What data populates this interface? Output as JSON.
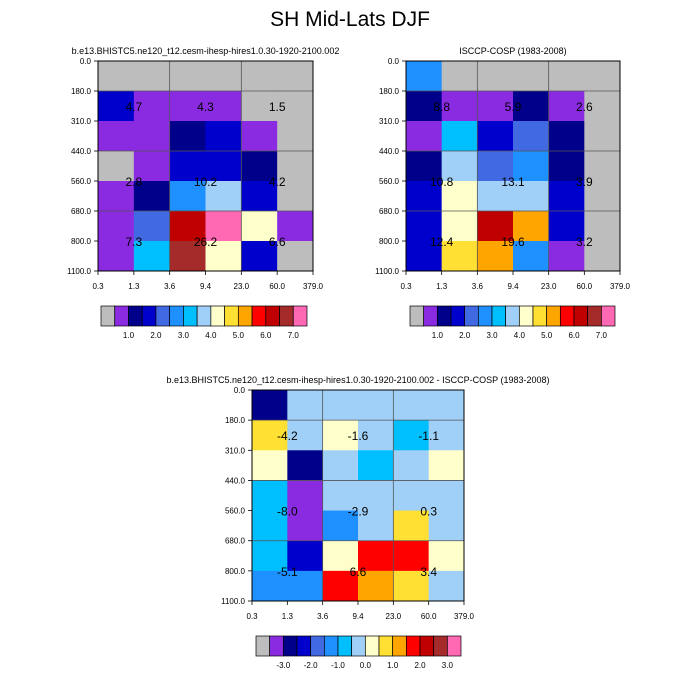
{
  "title": "SH Mid-Lats DJF",
  "palettes": {
    "absolute": [
      "#bdbdbd",
      "#8a2be2",
      "#00008b",
      "#0000cd",
      "#4169e1",
      "#1e90ff",
      "#00bfff",
      "#a0d0f8",
      "#ffffcc",
      "#ffe033",
      "#ffa500",
      "#ff0000",
      "#c00000",
      "#a52a2a",
      "#ff69b4"
    ],
    "difference": [
      "#bdbdbd",
      "#8a2be2",
      "#00008b",
      "#0000cd",
      "#4169e1",
      "#1e90ff",
      "#00bfff",
      "#a0d0f8",
      "#ffffcc",
      "#ffe033",
      "#ffa500",
      "#ff0000",
      "#c00000",
      "#a52a2a",
      "#ff69b4"
    ]
  },
  "chart_data": [
    {
      "type": "heatmap",
      "title": "b.e13.BHISTC5.ne120_t12.cesm-ihesp-hires1.0.30-1920-2100.002",
      "x_ticks": [
        "0.3",
        "1.3",
        "3.6",
        "9.4",
        "23.0",
        "60.0",
        "379.0"
      ],
      "y_ticks": [
        "0.0",
        "180.0",
        "310.0",
        "440.0",
        "560.0",
        "680.0",
        "800.0",
        "1100.0"
      ],
      "cells": [
        [
          "#bdbdbd",
          "#bdbdbd",
          "#bdbdbd",
          "#bdbdbd",
          "#bdbdbd",
          "#bdbdbd"
        ],
        [
          "#0000cd",
          "#8a2be2",
          "#8a2be2",
          "#8a2be2",
          "#bdbdbd",
          "#bdbdbd"
        ],
        [
          "#8a2be2",
          "#8a2be2",
          "#00008b",
          "#0000cd",
          "#8a2be2",
          "#bdbdbd"
        ],
        [
          "#bdbdbd",
          "#8a2be2",
          "#0000cd",
          "#0000cd",
          "#00008b",
          "#bdbdbd"
        ],
        [
          "#8a2be2",
          "#00008b",
          "#1e90ff",
          "#a0d0f8",
          "#0000cd",
          "#bdbdbd"
        ],
        [
          "#8a2be2",
          "#4169e1",
          "#c00000",
          "#ff69b4",
          "#ffffcc",
          "#8a2be2"
        ],
        [
          "#8a2be2",
          "#00bfff",
          "#a52a2a",
          "#ffffcc",
          "#0000cd",
          "#bdbdbd"
        ]
      ],
      "annotations": [
        {
          "text": "4.7",
          "col": 0.5,
          "row": 1.5
        },
        {
          "text": "4.3",
          "col": 2.5,
          "row": 1.5
        },
        {
          "text": "1.5",
          "col": 4.5,
          "row": 1.5
        },
        {
          "text": "2.8",
          "col": 0.5,
          "row": 4.0
        },
        {
          "text": "10.2",
          "col": 2.5,
          "row": 4.0
        },
        {
          "text": "4.2",
          "col": 4.5,
          "row": 4.0
        },
        {
          "text": "7.3",
          "col": 0.5,
          "row": 6.0
        },
        {
          "text": "26.2",
          "col": 2.5,
          "row": 6.0
        },
        {
          "text": "6.6",
          "col": 4.5,
          "row": 6.0
        }
      ],
      "colorbar_labels": [
        "1.0",
        "2.0",
        "3.0",
        "4.0",
        "5.0",
        "6.0",
        "7.0"
      ],
      "palette": "absolute"
    },
    {
      "type": "heatmap",
      "title": "ISCCP-COSP (1983-2008)",
      "x_ticks": [
        "0.3",
        "1.3",
        "3.6",
        "9.4",
        "23.0",
        "60.0",
        "379.0"
      ],
      "y_ticks": [
        "0.0",
        "180.0",
        "310.0",
        "440.0",
        "560.0",
        "680.0",
        "800.0",
        "1100.0"
      ],
      "cells": [
        [
          "#1e90ff",
          "#bdbdbd",
          "#bdbdbd",
          "#bdbdbd",
          "#bdbdbd",
          "#bdbdbd"
        ],
        [
          "#00008b",
          "#8a2be2",
          "#8a2be2",
          "#00008b",
          "#8a2be2",
          "#bdbdbd"
        ],
        [
          "#8a2be2",
          "#00bfff",
          "#0000cd",
          "#4169e1",
          "#00008b",
          "#bdbdbd"
        ],
        [
          "#00008b",
          "#a0d0f8",
          "#4169e1",
          "#1e90ff",
          "#00008b",
          "#bdbdbd"
        ],
        [
          "#0000cd",
          "#ffffcc",
          "#a0d0f8",
          "#a0d0f8",
          "#0000cd",
          "#bdbdbd"
        ],
        [
          "#0000cd",
          "#ffffcc",
          "#c00000",
          "#ffa500",
          "#0000cd",
          "#bdbdbd"
        ],
        [
          "#0000cd",
          "#ffe033",
          "#ffa500",
          "#1e90ff",
          "#8a2be2",
          "#bdbdbd"
        ]
      ],
      "annotations": [
        {
          "text": "8.8",
          "col": 0.5,
          "row": 1.5
        },
        {
          "text": "5.9",
          "col": 2.5,
          "row": 1.5
        },
        {
          "text": "2.6",
          "col": 4.5,
          "row": 1.5
        },
        {
          "text": "10.8",
          "col": 0.5,
          "row": 4.0
        },
        {
          "text": "13.1",
          "col": 2.5,
          "row": 4.0
        },
        {
          "text": "3.9",
          "col": 4.5,
          "row": 4.0
        },
        {
          "text": "12.4",
          "col": 0.5,
          "row": 6.0
        },
        {
          "text": "19.6",
          "col": 2.5,
          "row": 6.0
        },
        {
          "text": "3.2",
          "col": 4.5,
          "row": 6.0
        }
      ],
      "colorbar_labels": [
        "1.0",
        "2.0",
        "3.0",
        "4.0",
        "5.0",
        "6.0",
        "7.0"
      ],
      "palette": "absolute"
    },
    {
      "type": "heatmap",
      "title": "b.e13.BHISTC5.ne120_t12.cesm-ihesp-hires1.0.30-1920-2100.002 - ISCCP-COSP (1983-2008)",
      "x_ticks": [
        "0.3",
        "1.3",
        "3.6",
        "9.4",
        "23.0",
        "60.0",
        "379.0"
      ],
      "y_ticks": [
        "0.0",
        "180.0",
        "310.0",
        "440.0",
        "560.0",
        "680.0",
        "800.0",
        "1100.0"
      ],
      "cells": [
        [
          "#00008b",
          "#a0d0f8",
          "#a0d0f8",
          "#a0d0f8",
          "#a0d0f8",
          "#a0d0f8"
        ],
        [
          "#ffe033",
          "#a0d0f8",
          "#ffffcc",
          "#a0d0f8",
          "#00bfff",
          "#a0d0f8"
        ],
        [
          "#ffffcc",
          "#00008b",
          "#a0d0f8",
          "#00bfff",
          "#a0d0f8",
          "#ffffcc"
        ],
        [
          "#00bfff",
          "#8a2be2",
          "#a0d0f8",
          "#a0d0f8",
          "#a0d0f8",
          "#a0d0f8"
        ],
        [
          "#00bfff",
          "#8a2be2",
          "#1e90ff",
          "#a0d0f8",
          "#ffe033",
          "#a0d0f8"
        ],
        [
          "#00bfff",
          "#0000cd",
          "#ffffcc",
          "#ff0000",
          "#ff0000",
          "#ffffcc"
        ],
        [
          "#1e90ff",
          "#1e90ff",
          "#ff0000",
          "#ffa500",
          "#ffe033",
          "#a0d0f8"
        ]
      ],
      "annotations": [
        {
          "text": "-4.2",
          "col": 0.5,
          "row": 1.5
        },
        {
          "text": "-1.6",
          "col": 2.5,
          "row": 1.5
        },
        {
          "text": "-1.1",
          "col": 4.5,
          "row": 1.5
        },
        {
          "text": "-8.0",
          "col": 0.5,
          "row": 4.0
        },
        {
          "text": "-2.9",
          "col": 2.5,
          "row": 4.0
        },
        {
          "text": "0.3",
          "col": 4.5,
          "row": 4.0
        },
        {
          "text": "-5.1",
          "col": 0.5,
          "row": 6.0
        },
        {
          "text": "6.6",
          "col": 2.5,
          "row": 6.0
        },
        {
          "text": "3.4",
          "col": 4.5,
          "row": 6.0
        }
      ],
      "colorbar_labels": [
        "-3.0",
        "-2.0",
        "-1.0",
        "0.0",
        "1.0",
        "2.0",
        "3.0"
      ],
      "palette": "difference"
    }
  ]
}
